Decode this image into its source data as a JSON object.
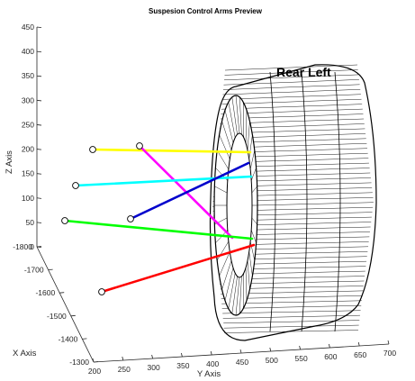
{
  "chart_data": {
    "type": "3d-line",
    "title": "Suspesion Control Arms Preview",
    "annotation": "Rear Left",
    "axes": {
      "x": {
        "label": "X Axis",
        "ticks": [
          -1300,
          -1400,
          -1500,
          -1600,
          -1700,
          -1800
        ]
      },
      "y": {
        "label": "Y Axis",
        "ticks": [
          200,
          250,
          300,
          350,
          400,
          450,
          500,
          550,
          600,
          650,
          700
        ]
      },
      "z": {
        "label": "Z Axis",
        "ticks": [
          0,
          50,
          100,
          150,
          200,
          250,
          300,
          350,
          400,
          450
        ]
      }
    },
    "series": [
      {
        "color": "#ffff00",
        "inboard_y": 195,
        "outboard_y": 478
      },
      {
        "color": "#ff00ff",
        "inboard_y": 240,
        "outboard_y": 462
      },
      {
        "color": "#00ffff",
        "inboard_y": 185,
        "outboard_y": 482
      },
      {
        "color": "#0000cc",
        "inboard_y": 260,
        "outboard_y": 478
      },
      {
        "color": "#00ff00",
        "inboard_y": 190,
        "outboard_y": 478
      },
      {
        "color": "#ff0000",
        "inboard_y": 215,
        "outboard_y": 480
      }
    ],
    "grid": false,
    "legend": "none"
  }
}
